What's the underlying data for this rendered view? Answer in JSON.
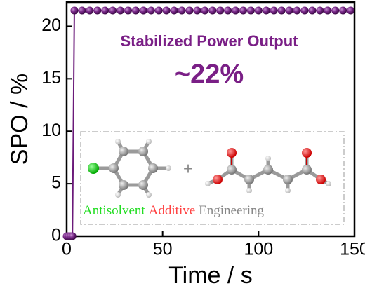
{
  "chart_data": {
    "type": "line",
    "xlabel": "Time / s",
    "ylabel": "SPO / %",
    "annotations": [
      "Stabilized Power Output",
      "~22%"
    ],
    "inset_labels": [
      "Antisolvent",
      "Additive",
      "Engineering"
    ],
    "color": "#6b1a7a",
    "x": [
      0,
      1,
      2,
      3,
      4,
      8,
      12,
      16,
      20,
      24,
      28,
      32,
      36,
      40,
      44,
      48,
      52,
      56,
      60,
      64,
      68,
      72,
      76,
      80,
      84,
      88,
      92,
      96,
      100,
      104,
      108,
      112,
      116,
      120,
      124,
      128,
      132,
      136,
      140,
      144,
      148
    ],
    "values": [
      0,
      0,
      0,
      0,
      21.5,
      21.5,
      21.5,
      21.5,
      21.5,
      21.5,
      21.5,
      21.5,
      21.5,
      21.5,
      21.5,
      21.5,
      21.5,
      21.5,
      21.5,
      21.5,
      21.5,
      21.5,
      21.5,
      21.5,
      21.5,
      21.5,
      21.5,
      21.5,
      21.5,
      21.5,
      21.5,
      21.5,
      21.5,
      21.5,
      21.5,
      21.5,
      21.5,
      21.5,
      21.5,
      21.5,
      21.5
    ],
    "xlim": [
      0,
      150
    ],
    "xticks": [
      0,
      50,
      100,
      150
    ],
    "ylim": [
      0,
      22.3
    ],
    "yticks": [
      0,
      5,
      10,
      15,
      20
    ]
  }
}
